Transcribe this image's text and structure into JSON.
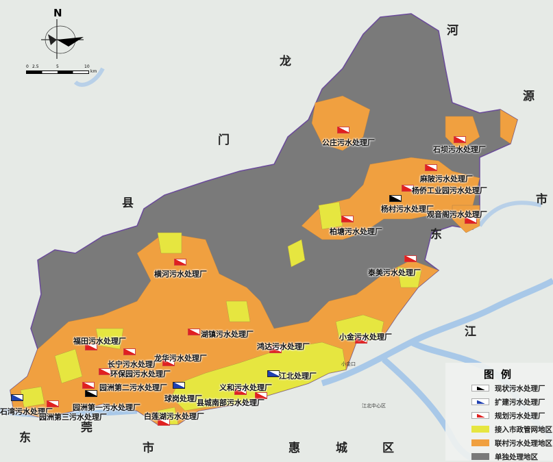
{
  "colors": {
    "existing": "#000000",
    "expanded": "#2040b0",
    "planned": "#e02020",
    "municipal": "#e6e640",
    "village": "#f0a040",
    "standalone": "#7a7a7a",
    "river": "#a8c8e8"
  },
  "compass": {
    "north": "N",
    "scale_ticks": [
      "0",
      "2.5",
      "5",
      "10"
    ],
    "scale_unit": "km"
  },
  "region_labels": [
    "河",
    "龙",
    "门",
    "县",
    "源",
    "市",
    "东",
    "江",
    "东",
    "莞",
    "市",
    "惠",
    "城",
    "区"
  ],
  "place_labels": [
    "小金口",
    "江北中心区"
  ],
  "plants": [
    {
      "name": "公庄污水处理厂",
      "type": "planned"
    },
    {
      "name": "石坝污水处理厂",
      "type": "planned"
    },
    {
      "name": "麻陂污水处理厂",
      "type": "planned"
    },
    {
      "name": "杨侨工业园污水处理厂",
      "type": "planned"
    },
    {
      "name": "杨村污水处理厂",
      "type": "existing"
    },
    {
      "name": "观音阁污水处理厂",
      "type": "planned"
    },
    {
      "name": "柏塘污水处理厂",
      "type": "planned"
    },
    {
      "name": "横河污水处理厂",
      "type": "planned"
    },
    {
      "name": "泰美污水处理厂",
      "type": "planned"
    },
    {
      "name": "湖镇污水处理厂",
      "type": "planned"
    },
    {
      "name": "鸿达污水处理厂",
      "type": "planned"
    },
    {
      "name": "小金污水处理厂",
      "type": "planned"
    },
    {
      "name": "福田污水处理厂",
      "type": "planned"
    },
    {
      "name": "长宁污水处理厂",
      "type": "planned"
    },
    {
      "name": "龙华污水处理厂",
      "type": "planned"
    },
    {
      "name": "环保园污水处理厂",
      "type": "planned"
    },
    {
      "name": "园洲第二污水处理厂",
      "type": "planned"
    },
    {
      "name": "园洲第一污水处理厂",
      "type": "existing"
    },
    {
      "name": "石湾污水处理厂",
      "type": "expanded"
    },
    {
      "name": "园洲第三污水处理厂",
      "type": "planned"
    },
    {
      "name": "江北处理厂",
      "type": "expanded"
    },
    {
      "name": "义和污水处理厂",
      "type": "planned"
    },
    {
      "name": "县城南部污水处理厂",
      "type": "planned"
    },
    {
      "name": "球岗处理厂",
      "type": "expanded"
    },
    {
      "name": "白莲湖污水处理厂",
      "type": "planned"
    }
  ],
  "legend": {
    "title": "图例",
    "items": [
      {
        "label": "现状污水处理厂",
        "kind": "existing"
      },
      {
        "label": "扩建污水处理厂",
        "kind": "expanded"
      },
      {
        "label": "规划污水处理厂",
        "kind": "planned"
      },
      {
        "label": "接入市政管网地区",
        "kind": "municipal"
      },
      {
        "label": "联村污水处理地区",
        "kind": "village"
      },
      {
        "label": "单独处理地区",
        "kind": "standalone"
      }
    ]
  }
}
